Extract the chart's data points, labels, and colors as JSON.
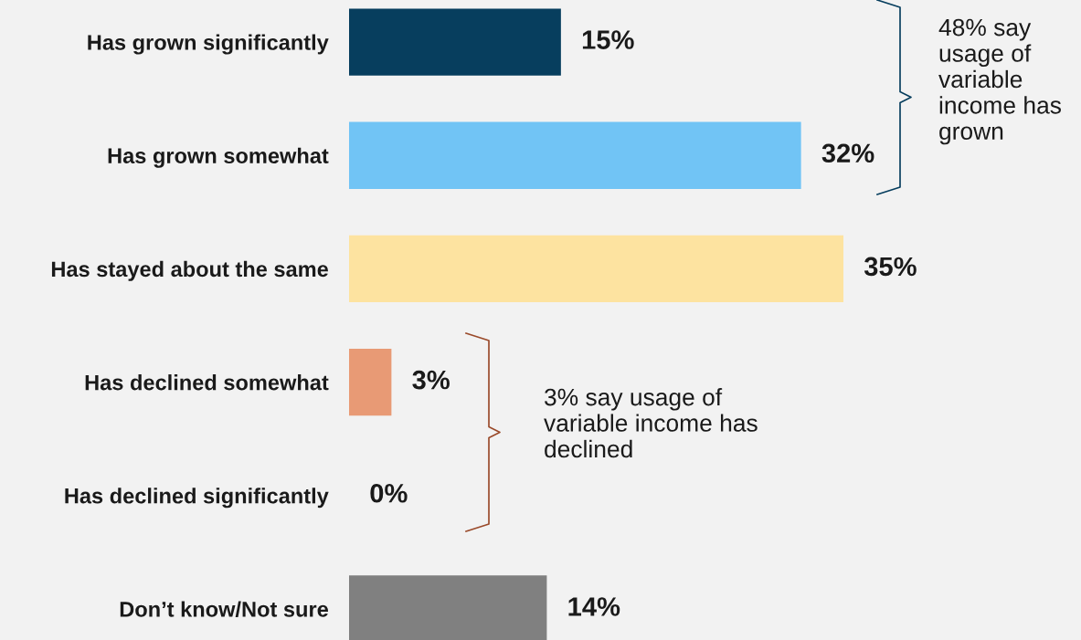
{
  "chart_data": {
    "type": "bar",
    "orientation": "horizontal",
    "categories": [
      "Has grown significantly",
      "Has grown somewhat",
      "Has stayed about the same",
      "Has declined somewhat",
      "Has declined significantly",
      "Don’t know/Not sure"
    ],
    "values": [
      15,
      32,
      35,
      3,
      0,
      14
    ],
    "colors": [
      "#073e5e",
      "#71c4f5",
      "#fde3a0",
      "#e89a75",
      "#e89a75",
      "#808080"
    ],
    "value_labels": [
      "15%",
      "32%",
      "35%",
      "3%",
      "0%",
      "14%"
    ],
    "annotations": [
      "48% say usage of variable income has grown",
      "3% say usage of variable income has declined"
    ],
    "legend": false,
    "grid": false
  }
}
